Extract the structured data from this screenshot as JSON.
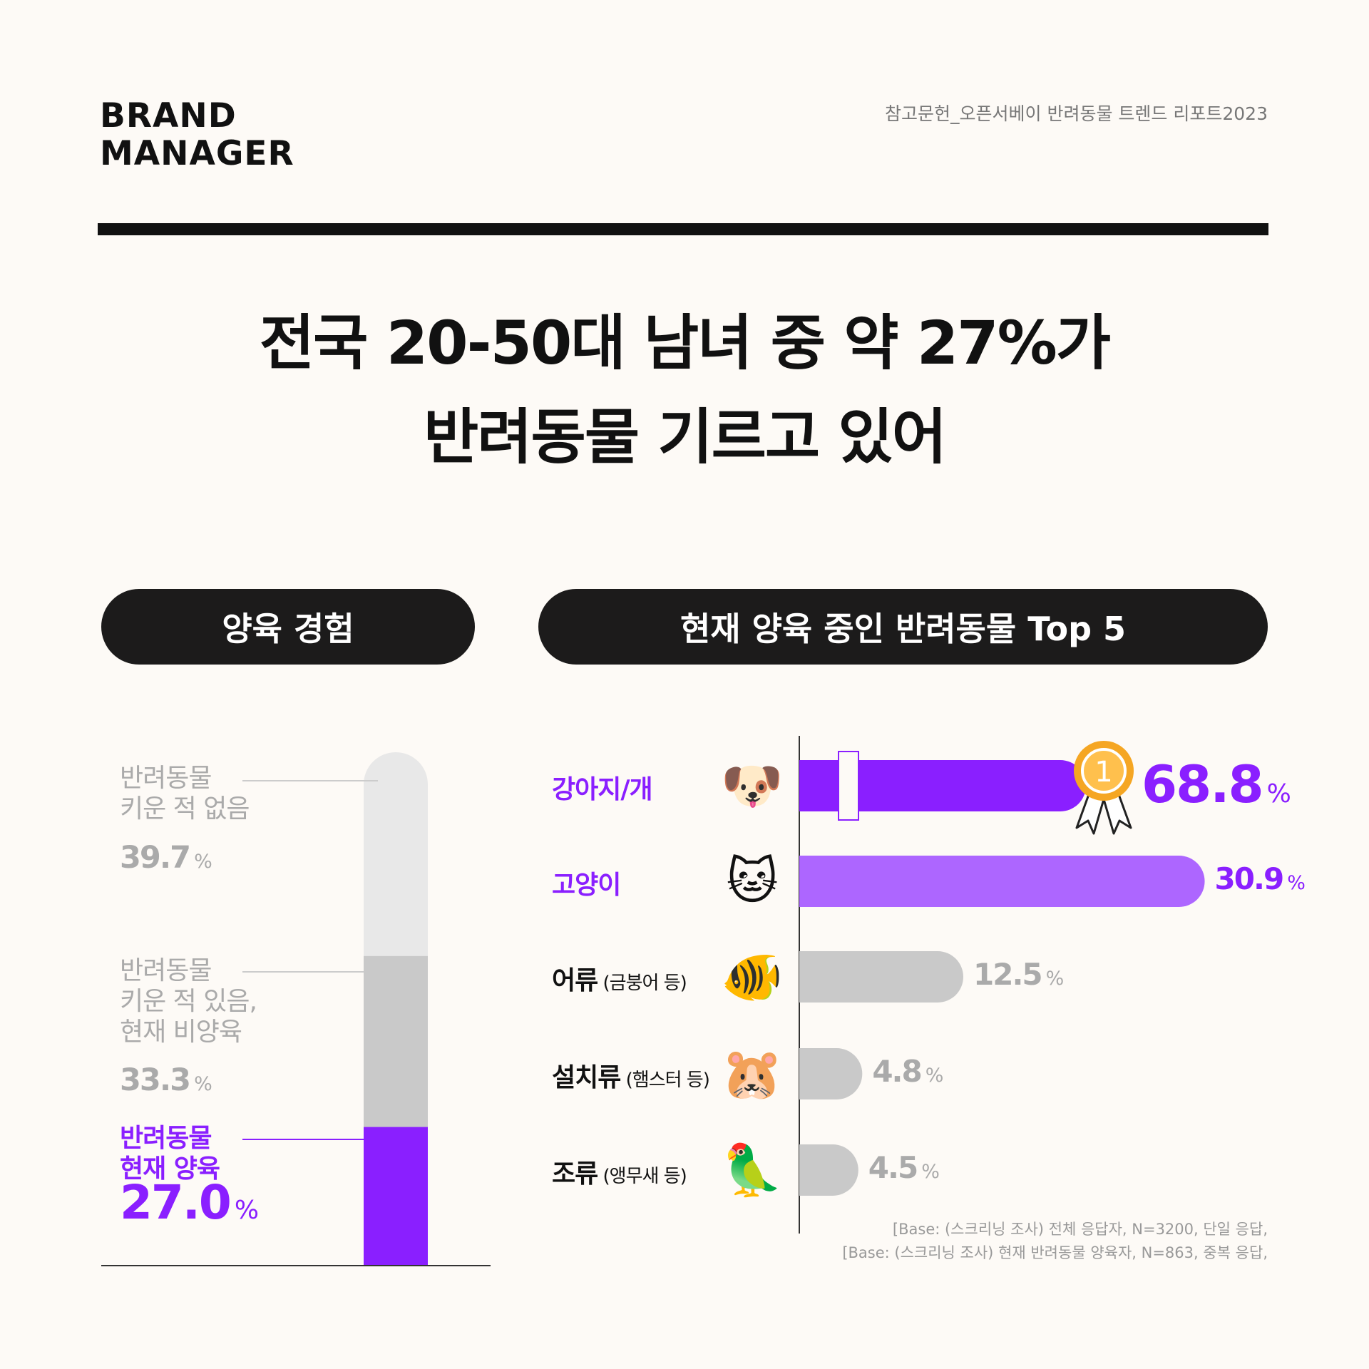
{
  "brand": "BRAND\nMANAGER",
  "reference": "참고문헌_오픈서베이 반려동물 트렌드 리포트2023",
  "headline": "전국 20-50대 남녀 중 약 27%가\n반려동물 기르고 있어",
  "sections": {
    "left_title": "양육 경험",
    "right_title": "현재 양육 중인 반려동물 Top 5"
  },
  "colors": {
    "purple": "#8a1fff",
    "light_purple": "#ad66ff",
    "gray": "#c9c9c9",
    "light_gray": "#e8e8e8"
  },
  "chart_data": [
    {
      "type": "bar",
      "subtype": "stacked-100",
      "title": "양육 경험",
      "segments": [
        {
          "label": "반려동물\n키운 적 없음",
          "value": 39.7,
          "unit": "%",
          "color": "#e8e8e8"
        },
        {
          "label": "반려동물\n키운 적 있음,\n현재 비양육",
          "value": 33.3,
          "unit": "%",
          "color": "#c9c9c9"
        },
        {
          "label": "반려동물\n현재 양육",
          "value": 27.0,
          "unit": "%",
          "color": "#8a1fff"
        }
      ]
    },
    {
      "type": "bar",
      "orientation": "horizontal",
      "title": "현재 양육 중인 반려동물 Top 5",
      "axis_break": true,
      "categories": [
        {
          "name": "강아지/개",
          "sub": "",
          "icon": "dog-face-icon",
          "value": 68.8,
          "unit": "%",
          "color": "#8a1fff",
          "highlight": true,
          "badge": "1"
        },
        {
          "name": "고양이",
          "sub": "",
          "icon": "cat-face-icon",
          "value": 30.9,
          "unit": "%",
          "color": "#ad66ff",
          "highlight": true
        },
        {
          "name": "어류",
          "sub": "(금붕어 등)",
          "icon": "tropical-fish-icon",
          "value": 12.5,
          "unit": "%",
          "color": "#c9c9c9"
        },
        {
          "name": "설치류",
          "sub": "(햄스터 등)",
          "icon": "hamster-face-icon",
          "value": 4.8,
          "unit": "%",
          "color": "#c9c9c9"
        },
        {
          "name": "조류",
          "sub": "(앵무새 등)",
          "icon": "parrot-icon",
          "value": 4.5,
          "unit": "%",
          "color": "#c9c9c9"
        }
      ]
    }
  ],
  "notes": "[Base: (스크리닝 조사) 전체 응답자, N=3200, 단일 응답,\n[Base: (스크리닝 조사) 현재 반려동물 양육자, N=863, 중복 응답,"
}
